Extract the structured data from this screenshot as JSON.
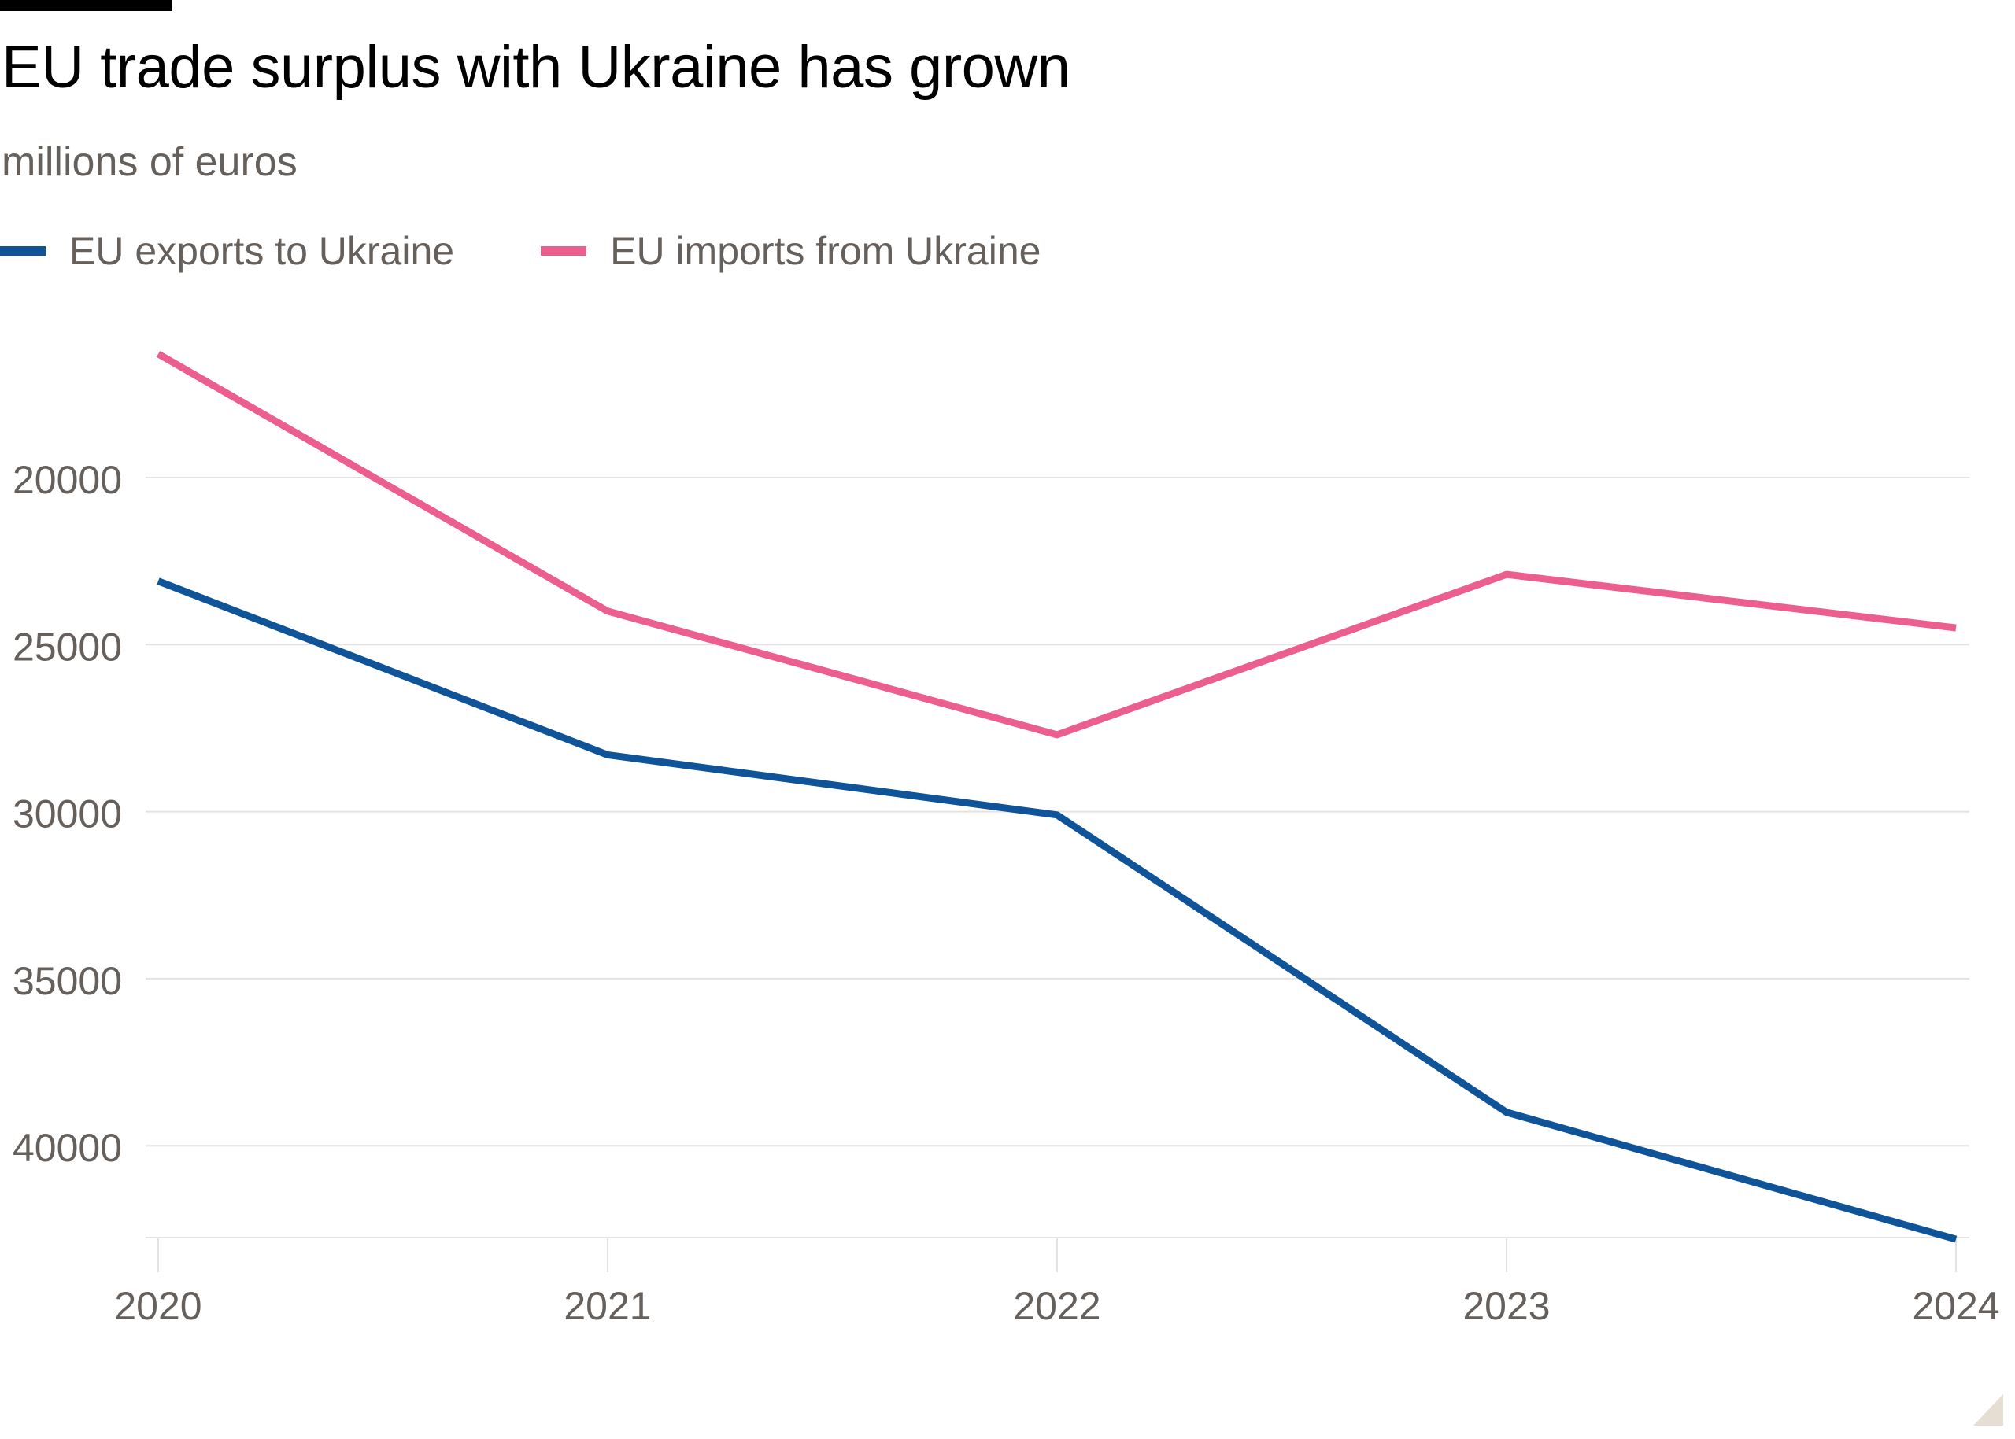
{
  "chart_data": {
    "type": "line",
    "title": "EU trade surplus with Ukraine has grown",
    "subtitle": "millions of euros",
    "x": [
      "2020",
      "2021",
      "2022",
      "2023",
      "2024"
    ],
    "series": [
      {
        "name": "EU exports to Ukraine",
        "color": "#0f5499",
        "values": [
          23100,
          28300,
          30100,
          39000,
          42800
        ]
      },
      {
        "name": "EU imports from Ukraine",
        "color": "#eb5e8d",
        "values": [
          16300,
          24000,
          27700,
          22900,
          24500
        ]
      }
    ],
    "y_ticks": [
      "20000",
      "25000",
      "30000",
      "35000",
      "40000"
    ],
    "y_tick_values": [
      20000,
      25000,
      30000,
      35000,
      40000
    ],
    "y_axis_reversed": true,
    "grid": true,
    "legend_position": "top-left",
    "xlabel": "",
    "ylabel": ""
  }
}
